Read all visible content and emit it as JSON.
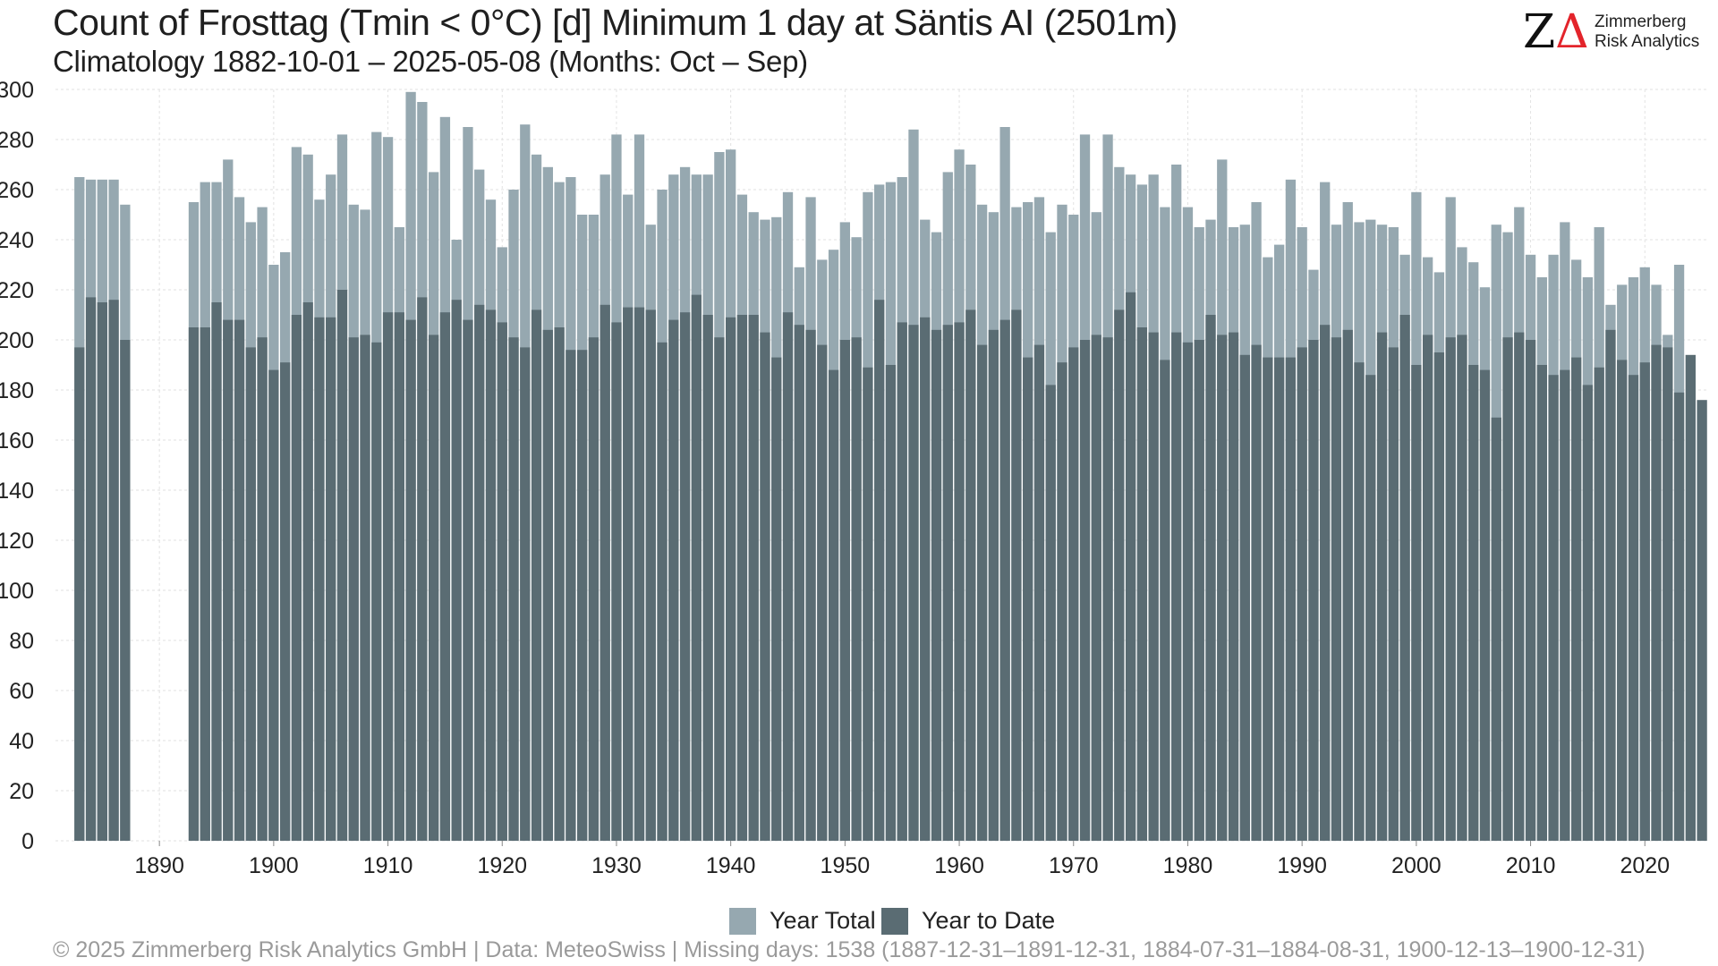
{
  "header": {
    "title": "Count of Frosttag (Tmin < 0°C) [d] Minimum 1 day at Säntis  AI (2501m)",
    "subtitle": "Climatology 1882-10-01 – 2025-05-08 (Months: Oct – Sep)"
  },
  "logo": {
    "mark_z": "Z",
    "mark_delta": "Δ",
    "line1": "Zimmerberg",
    "line2": "Risk Analytics"
  },
  "footer": {
    "text": "©  2025 Zimmerberg Risk Analytics GmbH | Data: MeteoSwiss | Missing days: 1538 (1887-12-31–1891-12-31, 1884-07-31–1884-08-31, 1900-12-13–1900-12-31)"
  },
  "colors": {
    "year_total": "#96a8b0",
    "year_to_date": "#5a6c73",
    "grid": "#e2e2e2",
    "axis_text": "#222222"
  },
  "chart_data": {
    "type": "bar",
    "title": "Count of Frosttag (Tmin < 0°C) [d] Minimum 1 day at Säntis  AI (2501m)",
    "subtitle": "Climatology 1882-10-01 – 2025-05-08 (Months: Oct – Sep)",
    "xlabel": "",
    "ylabel": "",
    "ylim": [
      0,
      300
    ],
    "xlim": [
      1882,
      2025
    ],
    "y_ticks": [
      0,
      20,
      40,
      60,
      80,
      100,
      120,
      140,
      160,
      180,
      200,
      220,
      240,
      260,
      280,
      300
    ],
    "x_ticks": [
      1890,
      1900,
      1910,
      1920,
      1930,
      1940,
      1950,
      1960,
      1970,
      1980,
      1990,
      2000,
      2010,
      2020
    ],
    "grid": true,
    "legend_position": "bottom-center",
    "overlay": true,
    "x_start": 1883,
    "series": [
      {
        "name": "Year Total",
        "color": "#96a8b0",
        "values": [
          265,
          264,
          264,
          264,
          254,
          null,
          null,
          null,
          null,
          null,
          255,
          263,
          263,
          272,
          257,
          247,
          253,
          230,
          235,
          277,
          274,
          256,
          266,
          282,
          254,
          252,
          283,
          281,
          245,
          299,
          295,
          267,
          289,
          240,
          285,
          268,
          256,
          237,
          260,
          286,
          274,
          269,
          263,
          265,
          250,
          250,
          266,
          282,
          258,
          282,
          246,
          260,
          266,
          269,
          266,
          266,
          275,
          276,
          258,
          251,
          248,
          249,
          259,
          229,
          257,
          232,
          236,
          247,
          241,
          259,
          262,
          263,
          265,
          284,
          248,
          243,
          267,
          276,
          270,
          254,
          251,
          285,
          253,
          255,
          257,
          243,
          254,
          250,
          282,
          251,
          282,
          269,
          266,
          262,
          266,
          253,
          270,
          253,
          245,
          248,
          272,
          245,
          246,
          255,
          233,
          238,
          264,
          245,
          228,
          263,
          246,
          255,
          247,
          248,
          246,
          245,
          234,
          259,
          233,
          227,
          257,
          237,
          231,
          221,
          246,
          243,
          253,
          234,
          225,
          234,
          247,
          232,
          225,
          245,
          214,
          222,
          225,
          229,
          222,
          202,
          230,
          null
        ]
      },
      {
        "name": "Year to Date",
        "color": "#5a6c73",
        "values": [
          197,
          217,
          215,
          216,
          200,
          null,
          null,
          null,
          null,
          null,
          205,
          205,
          215,
          208,
          208,
          197,
          201,
          188,
          191,
          210,
          215,
          209,
          209,
          220,
          201,
          202,
          199,
          211,
          211,
          208,
          217,
          202,
          211,
          216,
          208,
          214,
          212,
          207,
          201,
          197,
          212,
          204,
          205,
          196,
          196,
          201,
          214,
          207,
          213,
          213,
          212,
          199,
          208,
          211,
          218,
          210,
          201,
          209,
          210,
          210,
          203,
          193,
          211,
          206,
          204,
          198,
          188,
          200,
          201,
          189,
          216,
          190,
          207,
          206,
          209,
          204,
          206,
          207,
          212,
          198,
          204,
          208,
          212,
          193,
          198,
          182,
          191,
          197,
          200,
          202,
          201,
          212,
          219,
          205,
          203,
          192,
          203,
          199,
          200,
          210,
          202,
          203,
          194,
          198,
          193,
          193,
          193,
          197,
          200,
          206,
          201,
          204,
          191,
          186,
          203,
          197,
          210,
          190,
          202,
          195,
          201,
          202,
          190,
          188,
          169,
          201,
          203,
          200,
          190,
          186,
          188,
          193,
          182,
          189,
          204,
          192,
          186,
          191,
          198,
          197,
          179,
          194,
          176
        ]
      }
    ]
  },
  "legend": {
    "items": [
      {
        "label": "Year Total",
        "color": "#96a8b0"
      },
      {
        "label": "Year to Date",
        "color": "#5a6c73"
      }
    ]
  }
}
